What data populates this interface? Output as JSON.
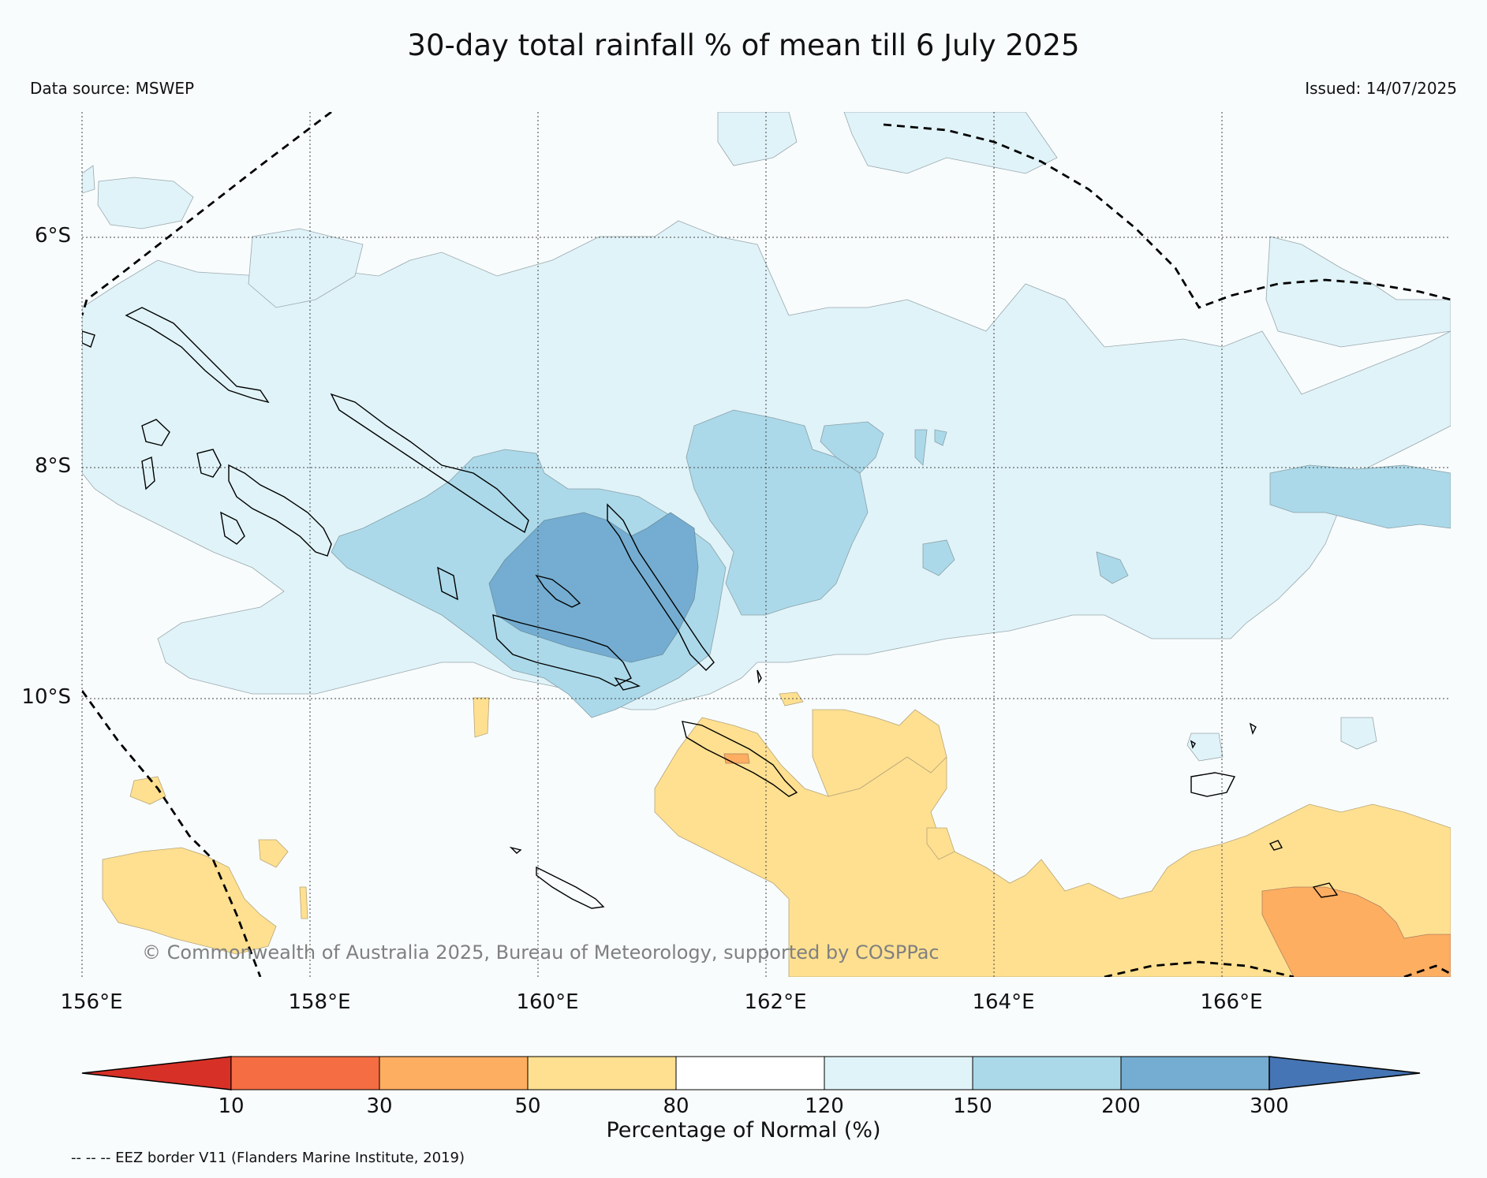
{
  "title": "30-day total rainfall % of mean till 6 July 2025",
  "data_source": "Data source: MSWEP",
  "issued": "Issued: 14/07/2025",
  "copyright": "© Commonwealth of Australia 2025, Bureau of Meteorology, supported by COSPPac",
  "lat_labels": [
    "6°S",
    "8°S",
    "10°S"
  ],
  "lon_labels": [
    "156°E",
    "158°E",
    "160°E",
    "162°E",
    "164°E",
    "166°E"
  ],
  "colorbar": {
    "title": "Percentage of Normal (%)",
    "ticks": [
      "10",
      "30",
      "50",
      "80",
      "120",
      "150",
      "200",
      "300"
    ],
    "colors": [
      "#d73027",
      "#f46d43",
      "#fdae61",
      "#fee090",
      "#ffffff",
      "#e0f3f8",
      "#abd9e9",
      "#74add1",
      "#4575b4"
    ]
  },
  "eez_legend": "-- -- -- EEZ border V11 (Flanders Marine Institute, 2019)",
  "colors": {
    "background": "#f8fcfd",
    "blue_120_150": "#e0f3f8",
    "blue_150_200": "#abd9e9",
    "blue_200_300": "#74add1",
    "yellow_50_80": "#fee090",
    "orange_30_50": "#fdae61"
  }
}
